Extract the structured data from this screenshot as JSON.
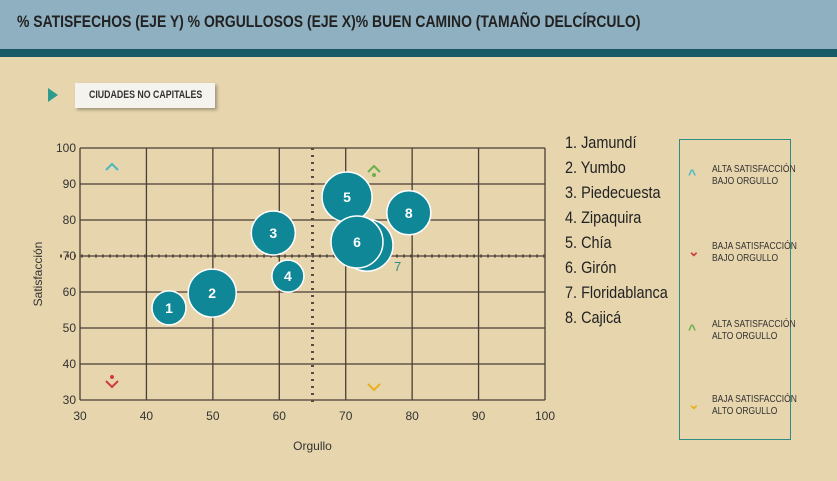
{
  "header": {
    "title": "% SATISFECHOS (EJE Y) % ORGULLOSOS (EJE X)% BUEN CAMINO (TAMAÑO DELCÍRCULO)"
  },
  "filter": {
    "label": "CIUDADES NO CAPITALES"
  },
  "chart_data": {
    "type": "scatter",
    "title": "% SATISFECHOS (EJE Y) % ORGULLOSOS (EJE X)% BUEN CAMINO (TAMAÑO DELCÍRCULO)",
    "xlabel": "Orgullo",
    "ylabel": "Satisfacción",
    "xlim": [
      30,
      100
    ],
    "ylim": [
      30,
      100
    ],
    "xticks": [
      30,
      40,
      50,
      60,
      70,
      80,
      90,
      100
    ],
    "yticks": [
      30,
      40,
      50,
      60,
      70,
      80,
      90,
      100
    ],
    "grid": true,
    "reference_lines": {
      "x": 65,
      "y": 70
    },
    "points": [
      {
        "id": "1",
        "name": "Jamundí",
        "x": 43.4,
        "y": 55.6,
        "size": 17
      },
      {
        "id": "2",
        "name": "Yumbo",
        "x": 49.9,
        "y": 59.7,
        "size": 24
      },
      {
        "id": "3",
        "name": "Piedecuesta",
        "x": 59.1,
        "y": 76.4,
        "size": 22
      },
      {
        "id": "4",
        "name": "Zipaquira",
        "x": 61.3,
        "y": 64.4,
        "size": 16
      },
      {
        "id": "5",
        "name": "Chía",
        "x": 70.2,
        "y": 86.4,
        "size": 25
      },
      {
        "id": "7",
        "name": "Floridablanca",
        "x": 73.2,
        "y": 73.0,
        "size": 26
      },
      {
        "id": "6",
        "name": "Girón",
        "x": 71.7,
        "y": 73.9,
        "size": 26
      },
      {
        "id": "8",
        "name": "Cajicá",
        "x": 79.5,
        "y": 82.0,
        "size": 22
      }
    ],
    "legend_list": [
      "1. Jamundí",
      "2. Yumbo",
      "3. Piedecuesta",
      "4. Zipaquira",
      "5. Chía",
      "6. Girón",
      "7. Floridablanca",
      "8. Cajicá"
    ],
    "quadrants": [
      {
        "label1": "ALTA SATISFACCIÓN",
        "label2": "BAJO ORGULLO",
        "icon": "^",
        "color": "#4ab8c0"
      },
      {
        "label1": "BAJA SATISFACCIÓN",
        "label2": "BAJO ORGULLO",
        "icon": "⌄",
        "color": "#d23a3a"
      },
      {
        "label1": "ALTA SATISFACCIÓN",
        "label2": "ALTO ORGULLO",
        "icon": "^",
        "color": "#6ab04c"
      },
      {
        "label1": "BAJA SATISFACCIÓN",
        "label2": "ALTO ORGULLO",
        "icon": "⌄",
        "color": "#e8b020"
      }
    ],
    "bubble_color": "#0f8796"
  }
}
